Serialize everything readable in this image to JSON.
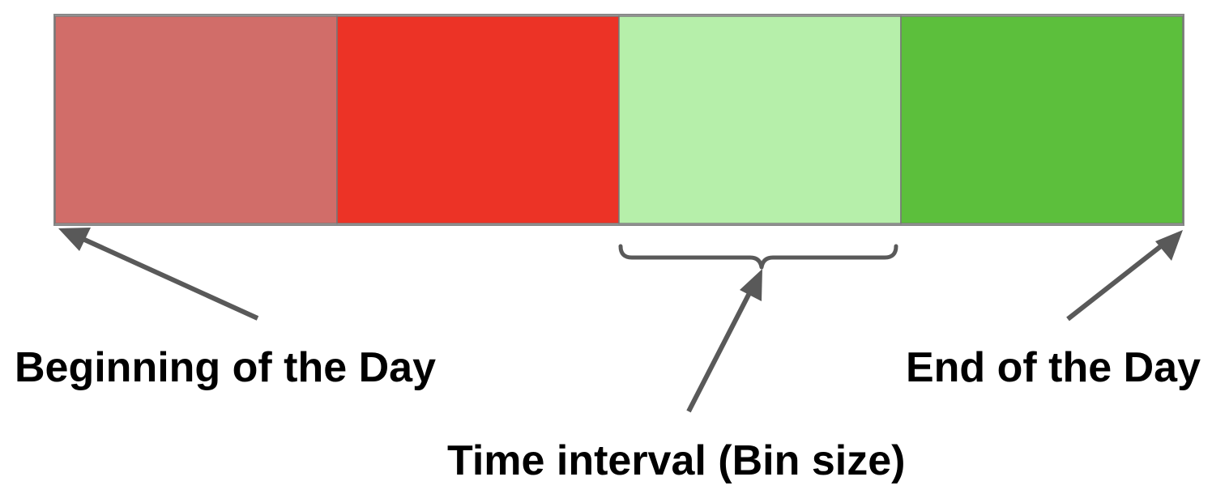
{
  "labels": {
    "beginning": "Beginning of the Day",
    "end": "End of the Day",
    "interval": "Time interval (Bin size)"
  },
  "segments": [
    {
      "color": "#d16d69"
    },
    {
      "color": "#ec3326"
    },
    {
      "color": "#b6efaa"
    },
    {
      "color": "#5cbf3c"
    }
  ],
  "colors": {
    "border": "#888888",
    "arrow": "#595959",
    "text": "#000000"
  },
  "icons": [
    "arrow-icon",
    "brace-icon"
  ]
}
